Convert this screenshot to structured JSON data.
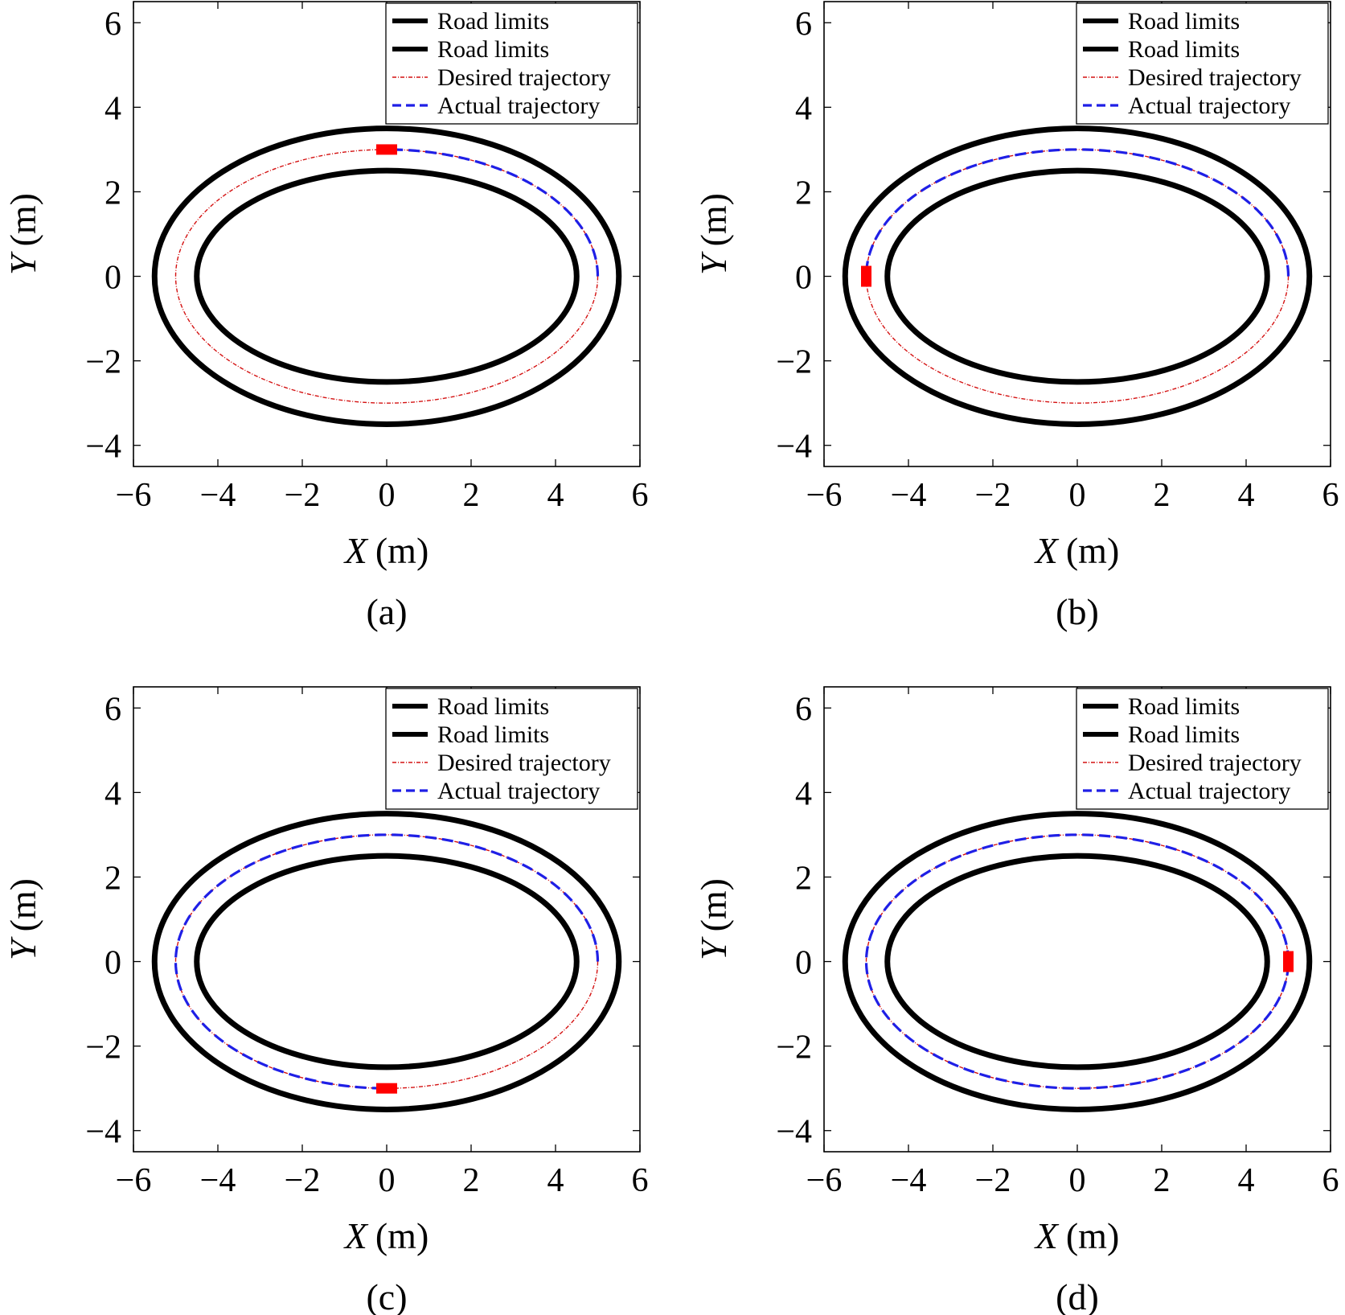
{
  "chart_data": [
    {
      "type": "line",
      "panel_label": "(a)",
      "xlabel_symbol": "X",
      "xlabel_unit": "(m)",
      "ylabel_symbol": "Y",
      "ylabel_unit": "(m)",
      "xlim": [
        -6,
        6
      ],
      "ylim": [
        -4.5,
        6.5
      ],
      "xticks": [
        -6,
        -4,
        -2,
        0,
        2,
        4,
        6
      ],
      "yticks": [
        -4,
        -2,
        0,
        2,
        4,
        6
      ],
      "legend_position": "top-right",
      "legend": [
        "Road limits",
        "Road limits",
        "Desired trajectory",
        "Actual trajectory"
      ],
      "series": [
        {
          "name": "Road limits",
          "kind": "ellipse",
          "center": [
            0,
            0
          ],
          "a": 5.5,
          "b": 3.5
        },
        {
          "name": "Road limits",
          "kind": "ellipse",
          "center": [
            0,
            0
          ],
          "a": 4.5,
          "b": 2.5
        },
        {
          "name": "Desired trajectory",
          "kind": "ellipse",
          "center": [
            0,
            0
          ],
          "a": 5.0,
          "b": 3.0
        },
        {
          "name": "Actual trajectory",
          "kind": "ellipse_arc",
          "center": [
            0,
            0
          ],
          "a": 5.0,
          "b": 3.0,
          "start_point": [
            5.0,
            0.0
          ],
          "end_point": [
            0.0,
            3.0
          ]
        }
      ],
      "vehicle": {
        "x": 0.0,
        "y": 3.0,
        "orientation": "horizontal"
      }
    },
    {
      "type": "line",
      "panel_label": "(b)",
      "xlabel_symbol": "X",
      "xlabel_unit": "(m)",
      "ylabel_symbol": "Y",
      "ylabel_unit": "(m)",
      "xlim": [
        -6,
        6
      ],
      "ylim": [
        -4.5,
        6.5
      ],
      "xticks": [
        -6,
        -4,
        -2,
        0,
        2,
        4,
        6
      ],
      "yticks": [
        -4,
        -2,
        0,
        2,
        4,
        6
      ],
      "legend_position": "top-right",
      "legend": [
        "Road limits",
        "Road limits",
        "Desired trajectory",
        "Actual trajectory"
      ],
      "series": [
        {
          "name": "Road limits",
          "kind": "ellipse",
          "center": [
            0,
            0
          ],
          "a": 5.5,
          "b": 3.5
        },
        {
          "name": "Road limits",
          "kind": "ellipse",
          "center": [
            0,
            0
          ],
          "a": 4.5,
          "b": 2.5
        },
        {
          "name": "Desired trajectory",
          "kind": "ellipse",
          "center": [
            0,
            0
          ],
          "a": 5.0,
          "b": 3.0
        },
        {
          "name": "Actual trajectory",
          "kind": "ellipse_arc",
          "center": [
            0,
            0
          ],
          "a": 5.0,
          "b": 3.0,
          "start_point": [
            5.0,
            0.0
          ],
          "end_point": [
            -5.0,
            0.0
          ]
        }
      ],
      "vehicle": {
        "x": -5.0,
        "y": 0.0,
        "orientation": "vertical"
      }
    },
    {
      "type": "line",
      "panel_label": "(c)",
      "xlabel_symbol": "X",
      "xlabel_unit": "(m)",
      "ylabel_symbol": "Y",
      "ylabel_unit": "(m)",
      "xlim": [
        -6,
        6
      ],
      "ylim": [
        -4.5,
        6.5
      ],
      "xticks": [
        -6,
        -4,
        -2,
        0,
        2,
        4,
        6
      ],
      "yticks": [
        -4,
        -2,
        0,
        2,
        4,
        6
      ],
      "legend_position": "top-right",
      "legend": [
        "Road limits",
        "Road limits",
        "Desired trajectory",
        "Actual trajectory"
      ],
      "series": [
        {
          "name": "Road limits",
          "kind": "ellipse",
          "center": [
            0,
            0
          ],
          "a": 5.5,
          "b": 3.5
        },
        {
          "name": "Road limits",
          "kind": "ellipse",
          "center": [
            0,
            0
          ],
          "a": 4.5,
          "b": 2.5
        },
        {
          "name": "Desired trajectory",
          "kind": "ellipse",
          "center": [
            0,
            0
          ],
          "a": 5.0,
          "b": 3.0
        },
        {
          "name": "Actual trajectory",
          "kind": "ellipse_arc",
          "center": [
            0,
            0
          ],
          "a": 5.0,
          "b": 3.0,
          "start_point": [
            5.0,
            0.0
          ],
          "end_point": [
            0.0,
            -3.0
          ]
        }
      ],
      "vehicle": {
        "x": 0.0,
        "y": -3.0,
        "orientation": "horizontal"
      }
    },
    {
      "type": "line",
      "panel_label": "(d)",
      "xlabel_symbol": "X",
      "xlabel_unit": "(m)",
      "ylabel_symbol": "Y",
      "ylabel_unit": "(m)",
      "xlim": [
        -6,
        6
      ],
      "ylim": [
        -4.5,
        6.5
      ],
      "xticks": [
        -6,
        -4,
        -2,
        0,
        2,
        4,
        6
      ],
      "yticks": [
        -4,
        -2,
        0,
        2,
        4,
        6
      ],
      "legend_position": "top-right",
      "legend": [
        "Road limits",
        "Road limits",
        "Desired trajectory",
        "Actual trajectory"
      ],
      "series": [
        {
          "name": "Road limits",
          "kind": "ellipse",
          "center": [
            0,
            0
          ],
          "a": 5.5,
          "b": 3.5
        },
        {
          "name": "Road limits",
          "kind": "ellipse",
          "center": [
            0,
            0
          ],
          "a": 4.5,
          "b": 2.5
        },
        {
          "name": "Desired trajectory",
          "kind": "ellipse",
          "center": [
            0,
            0
          ],
          "a": 5.0,
          "b": 3.0
        },
        {
          "name": "Actual trajectory",
          "kind": "ellipse_arc",
          "center": [
            0,
            0
          ],
          "a": 5.0,
          "b": 3.0,
          "start_point": [
            5.0,
            0.0
          ],
          "end_point": [
            5.0,
            0.0
          ]
        }
      ],
      "vehicle": {
        "x": 5.0,
        "y": 0.0,
        "orientation": "vertical"
      }
    }
  ],
  "colors": {
    "road_limits": "#000000",
    "desired_trajectory": "#d41111",
    "actual_trajectory": "#1f1fe6",
    "vehicle": "#ff0000"
  }
}
